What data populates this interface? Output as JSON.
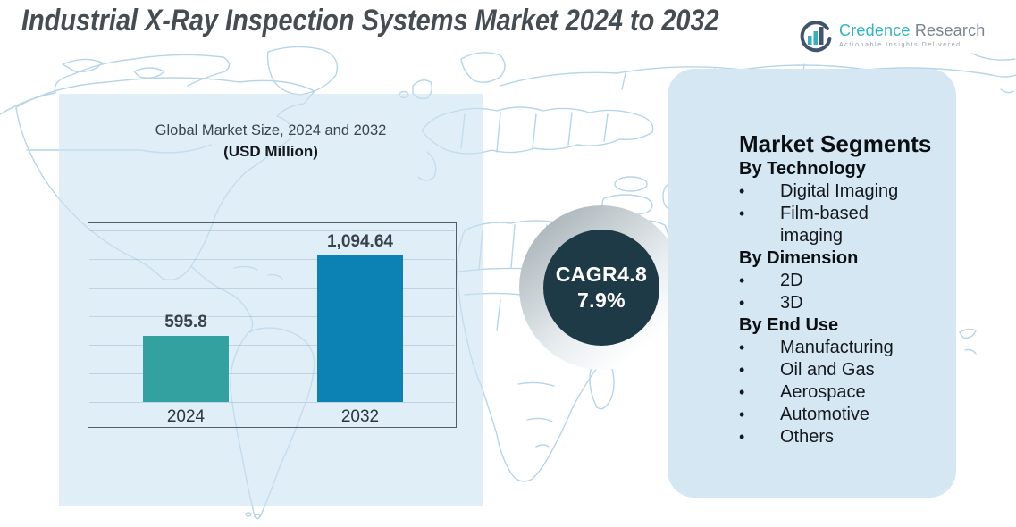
{
  "title": "Industrial X-Ray Inspection Systems Market 2024 to 2032",
  "logo": {
    "brand_primary": "Credence",
    "brand_secondary": "Research",
    "tagline": "Actionable Insights Delivered",
    "icon": "bar-chart-in-circle"
  },
  "chart_data": {
    "type": "bar",
    "title": "Global Market Size, 2024 and 2032",
    "subtitle": "(USD Million)",
    "unit": "USD Million",
    "categories": [
      "2024",
      "2032"
    ],
    "values": [
      595.8,
      1094.64
    ],
    "value_labels": [
      "595.8",
      "1,094.64"
    ],
    "series_colors": [
      "#33a1a0",
      "#0b81b4"
    ],
    "grid": true,
    "legend": false,
    "value_axis_visible": false,
    "baseline_value_estimate": 186
  },
  "cagr_badge": {
    "line1": "CAGR4.8",
    "line2": "7.9%",
    "bg_color": "#1e3a46"
  },
  "segments": {
    "heading": "Market Segments",
    "groups": [
      {
        "label": "By Technology",
        "items": [
          "Digital Imaging",
          "Film-based imaging"
        ]
      },
      {
        "label": "By Dimension",
        "items": [
          "2D",
          "3D"
        ]
      },
      {
        "label": "By End Use",
        "items": [
          "Manufacturing",
          "Oil and Gas",
          "Aerospace",
          "Automotive",
          "Others"
        ]
      }
    ]
  },
  "colors": {
    "bar_2024": "#33a1a0",
    "bar_2032": "#0b81b4",
    "badge_bg": "#1e3a46",
    "panel_bg": "#d5e7f3",
    "map_line": "#b6d5e7",
    "brand_teal": "#2eb4c4"
  }
}
